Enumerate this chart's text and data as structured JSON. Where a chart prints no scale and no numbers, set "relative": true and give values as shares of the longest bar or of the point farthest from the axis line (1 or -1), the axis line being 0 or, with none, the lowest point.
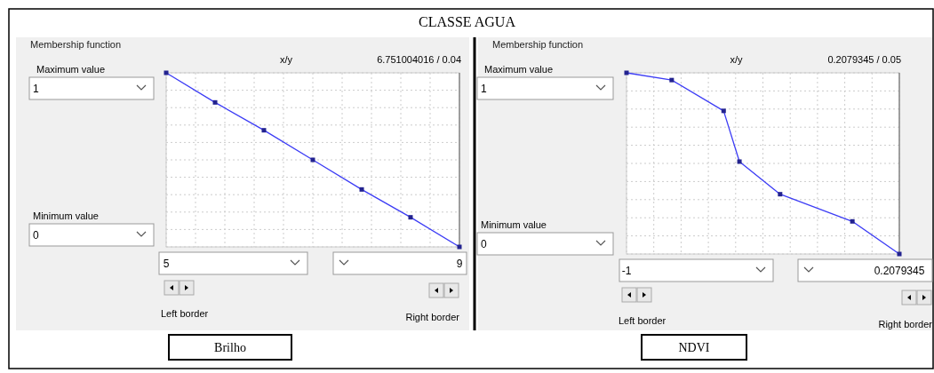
{
  "chart_data": [
    {
      "type": "line",
      "title": "CLASSE AGUA",
      "xlabel": "Brilho",
      "annotations": [
        "Membership function",
        "Maximum value",
        "Minimum value",
        "x/y",
        "6.751004016 / 0.04",
        "Left border",
        "Right border",
        "1",
        "0"
      ],
      "x": [
        5,
        5.667,
        6.333,
        7,
        7.667,
        8.333,
        9
      ],
      "series": [
        {
          "color": "#3c3cf5",
          "values": [
            1,
            0.83,
            0.67,
            0.5,
            0.33,
            0.17,
            0
          ]
        }
      ],
      "relative": true,
      "xlim": [
        5,
        9
      ],
      "xticks": [
        5,
        {
          "value": 5.4,
          "label": null
        },
        {
          "value": 5.8,
          "label": null
        },
        {
          "value": 6.2,
          "label": null
        },
        {
          "value": 6.6,
          "label": null
        },
        {
          "value": 7,
          "label": null
        },
        {
          "value": 7.4,
          "label": null
        },
        {
          "value": 7.8,
          "label": null
        },
        {
          "value": 8.2,
          "label": null
        },
        {
          "value": 8.6,
          "label": null
        },
        9
      ],
      "grid": true,
      "marker": "square",
      "line_style": "solid"
    },
    {
      "type": "line",
      "xlabel": "NDVI",
      "annotations": [
        "Membership function",
        "Maximum value",
        "Minimum value",
        "x/y",
        "0.2079345 / 0.05",
        "Left border",
        "Right border",
        "1",
        "0"
      ],
      "x": [
        -1,
        -0.8,
        -0.57,
        -0.5,
        -0.32,
        0,
        0.2079345
      ],
      "series": [
        {
          "color": "#3c3cf5",
          "values": [
            1,
            0.96,
            0.79,
            0.51,
            0.33,
            0.18,
            0
          ]
        }
      ],
      "relative": true,
      "xlim": [
        -1,
        0.2079345
      ],
      "xticks": [
        -1,
        {
          "value": -0.8792,
          "label": null
        },
        {
          "value": -0.7584,
          "label": null
        },
        {
          "value": -0.6376,
          "label": null
        },
        {
          "value": -0.5168,
          "label": null
        },
        {
          "value": -0.396,
          "label": null
        },
        {
          "value": -0.2752,
          "label": null
        },
        {
          "value": -0.1545,
          "label": null
        },
        {
          "value": -0.0337,
          "label": null
        },
        {
          "value": 0.0871,
          "label": null
        },
        0.2079345
      ],
      "grid": true,
      "marker": "square",
      "line_style": "solid"
    }
  ]
}
